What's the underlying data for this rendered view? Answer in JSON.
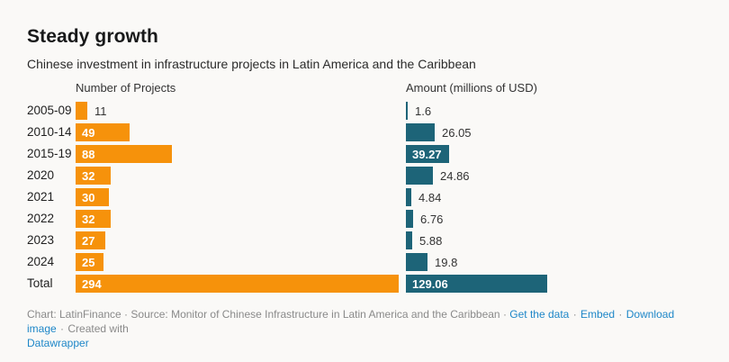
{
  "title": "Steady growth",
  "subtitle": "Chinese investment in infrastructure projects in Latin America and the Caribbean",
  "colors": {
    "projects_bar": "#F6920B",
    "amount_bar": "#1D6478",
    "link": "#1E87C8",
    "background": "#FAF9F7"
  },
  "chart_data": {
    "type": "bar",
    "orientation": "horizontal",
    "grid": false,
    "categories": [
      "2005-09",
      "2010-14",
      "2015-19",
      "2020",
      "2021",
      "2022",
      "2023",
      "2024",
      "Total"
    ],
    "series": [
      {
        "name": "Number of Projects",
        "values": [
          11,
          49,
          88,
          32,
          30,
          32,
          27,
          25,
          294
        ],
        "color": "#F6920B"
      },
      {
        "name": "Amount (millions of USD)",
        "values": [
          1.6,
          26.05,
          39.27,
          24.86,
          4.84,
          6.76,
          5.88,
          19.8,
          129.06
        ],
        "color": "#1D6478"
      }
    ],
    "value_labels_visible": true,
    "legend_position": "column-headers"
  },
  "footer": {
    "credit": "Chart: LatinFinance · Source: Monitor of Chinese Infrastructure in Latin America and the Caribbean ·",
    "links": {
      "get_data": "Get the data",
      "embed": "Embed",
      "download": "Download image"
    },
    "sep": "·",
    "created_with": "Created with",
    "brand": "Datawrapper"
  }
}
